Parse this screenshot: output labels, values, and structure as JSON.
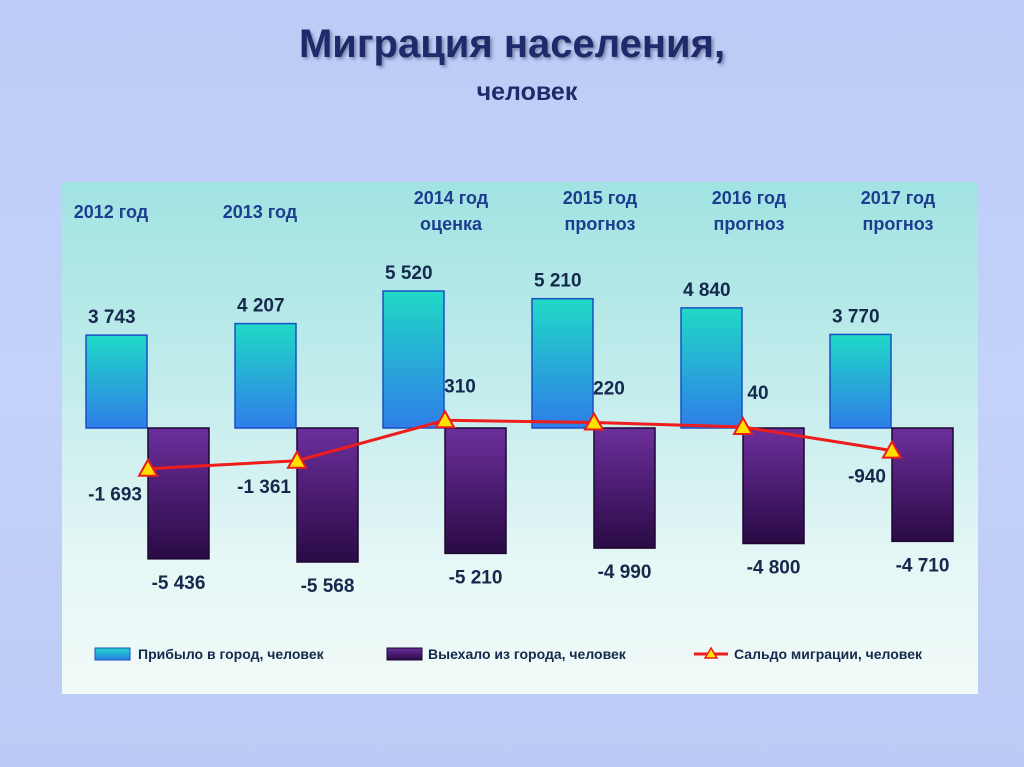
{
  "title": "Миграция населения,",
  "subtitle": "человек",
  "chart_data": {
    "type": "bar",
    "categories": [
      [
        "2012 год"
      ],
      [
        "2013 год"
      ],
      [
        "2014 год",
        "оценка"
      ],
      [
        "2015 год",
        "прогноз"
      ],
      [
        "2016 год",
        "прогноз"
      ],
      [
        "2017 год",
        "прогноз"
      ]
    ],
    "series": [
      {
        "name": "Прибыло в город, человек",
        "type": "bar",
        "values": [
          3743,
          4207,
          5520,
          5210,
          4840,
          3770
        ],
        "labels": [
          "3 743",
          "4 207",
          "5 520",
          "5 210",
          "4 840",
          "3 770"
        ]
      },
      {
        "name": "Выехало из города, человек",
        "type": "bar",
        "values": [
          -5436,
          -5568,
          -5210,
          -4990,
          -4800,
          -4710
        ],
        "labels": [
          "-5 436",
          "-5 568",
          "-5 210",
          "-4 990",
          "-4 800",
          "-4 710"
        ]
      },
      {
        "name": "Сальдо миграции, человек",
        "type": "line",
        "values": [
          -1693,
          -1361,
          310,
          220,
          40,
          -940
        ],
        "labels": [
          "-1 693",
          "-1 361",
          "310",
          "220",
          "40",
          "-940"
        ]
      }
    ],
    "ylim": [
      -6000,
      6000
    ],
    "legend_position": "bottom",
    "grid": false,
    "colors": {
      "arrived_top": "#1fd9c6",
      "arrived_bottom": "#2f7ee8",
      "departed_top": "#6c2f9c",
      "departed_bottom": "#2a0a45",
      "saldo_line": "#ee1c1c",
      "saldo_marker": "#ffe000",
      "label_text": "#15294d",
      "category_text": "#1d3d8f"
    }
  }
}
